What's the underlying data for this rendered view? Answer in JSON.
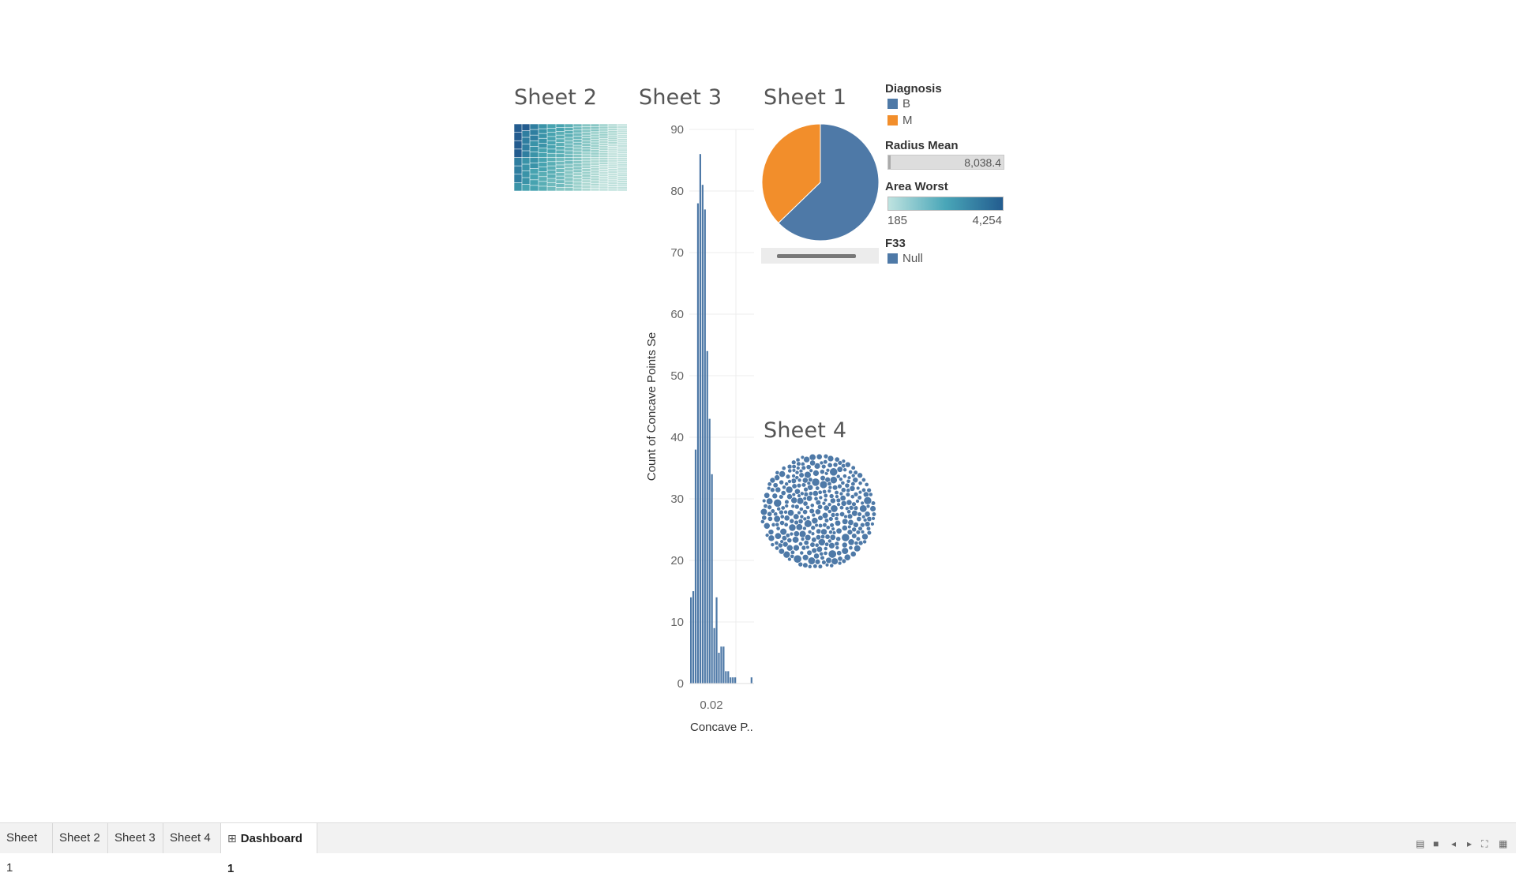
{
  "sheets": {
    "sheet2": {
      "title": "Sheet 2"
    },
    "sheet3": {
      "title": "Sheet 3"
    },
    "sheet1": {
      "title": "Sheet 1"
    },
    "sheet4": {
      "title": "Sheet 4"
    }
  },
  "legends": {
    "diagnosis": {
      "title": "Diagnosis",
      "items": [
        {
          "label": "B",
          "color": "#4e79a7"
        },
        {
          "label": "M",
          "color": "#f28e2b"
        }
      ]
    },
    "radius_mean": {
      "title": "Radius Mean",
      "value": "8,038.4"
    },
    "area_worst": {
      "title": "Area Worst",
      "min": "185",
      "max": "4,254",
      "color_start": "#bfe3e0",
      "color_end": "#235c8f"
    },
    "f33": {
      "title": "F33",
      "items": [
        {
          "label": "Null",
          "color": "#4e79a7"
        }
      ]
    }
  },
  "tabs": [
    {
      "label": "Sheet 1",
      "active": false
    },
    {
      "label": "Sheet 2",
      "active": false
    },
    {
      "label": "Sheet 3",
      "active": false
    },
    {
      "label": "Sheet 4",
      "active": false
    },
    {
      "label": "Dashboard 1",
      "active": true
    }
  ],
  "chart_data": [
    {
      "type": "bar",
      "name": "Sheet 3",
      "ylabel": "Count of Concave Points Se",
      "xlabel": "Concave P..",
      "x_tick_labels": [
        "0.02"
      ],
      "y_ticks": [
        0,
        10,
        20,
        30,
        40,
        50,
        60,
        70,
        80,
        90
      ],
      "ylim": [
        0,
        90
      ],
      "values": [
        14,
        15,
        38,
        78,
        86,
        81,
        77,
        54,
        43,
        34,
        9,
        14,
        5,
        6,
        6,
        2,
        2,
        1,
        1,
        1,
        0,
        0,
        0,
        0,
        0,
        0,
        1
      ],
      "color": "#4e79a7",
      "grid": true
    },
    {
      "type": "pie",
      "name": "Sheet 1",
      "categories": [
        "B",
        "M"
      ],
      "values": [
        357,
        212
      ],
      "colors": [
        "#4e79a7",
        "#f28e2b"
      ]
    }
  ]
}
